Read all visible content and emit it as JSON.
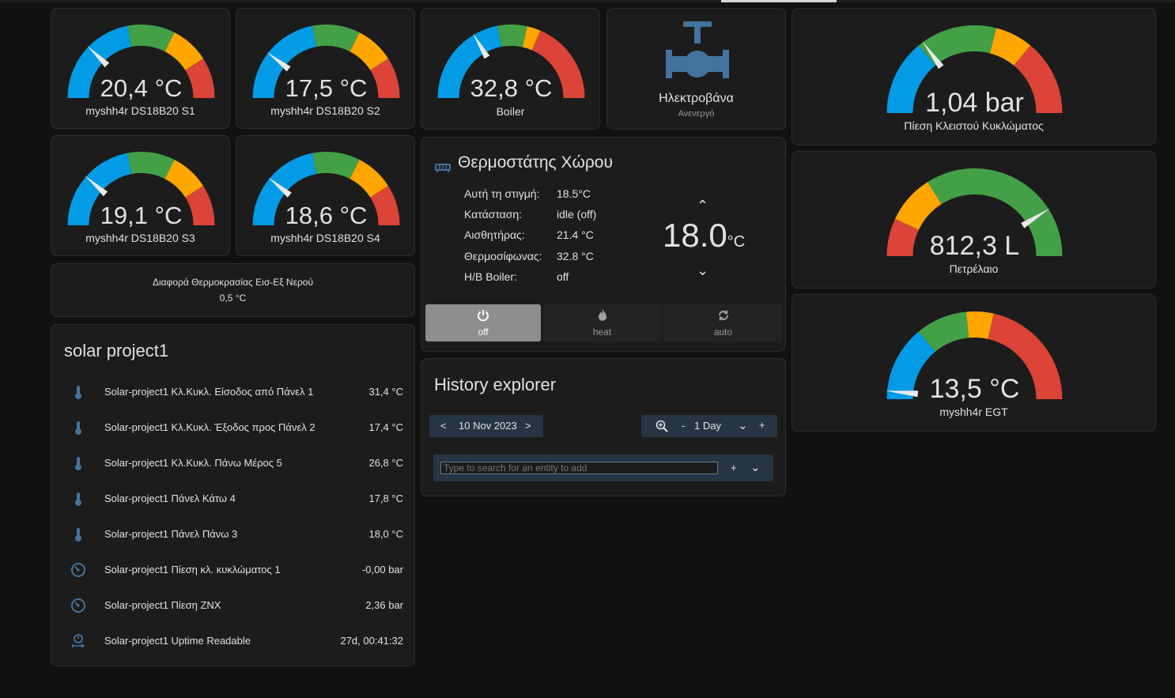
{
  "gauges": [
    {
      "id": "s1",
      "name": "myshh4r DS18B20 S1",
      "value": "20,4 °C",
      "needle": 0.245,
      "segments": [
        [
          "#039be5",
          0.44
        ],
        [
          "#43a047",
          0.65
        ],
        [
          "#ffa600",
          0.82
        ],
        [
          "#db4437",
          1
        ]
      ]
    },
    {
      "id": "s2",
      "name": "myshh4r DS18B20 S2",
      "value": "17,5 °C",
      "needle": 0.21,
      "segments": [
        [
          "#039be5",
          0.44
        ],
        [
          "#43a047",
          0.65
        ],
        [
          "#ffa600",
          0.82
        ],
        [
          "#db4437",
          1
        ]
      ]
    },
    {
      "id": "boiler",
      "name": "Boiler",
      "value": "32,8 °C",
      "needle": 0.33,
      "segments": [
        [
          "#039be5",
          0.44
        ],
        [
          "#43a047",
          0.57
        ],
        [
          "#ffa600",
          0.63
        ],
        [
          "#db4437",
          1
        ]
      ]
    },
    {
      "id": "s3",
      "name": "myshh4r DS18B20 S3",
      "value": "19,1 °C",
      "needle": 0.23,
      "segments": [
        [
          "#039be5",
          0.44
        ],
        [
          "#43a047",
          0.65
        ],
        [
          "#ffa600",
          0.82
        ],
        [
          "#db4437",
          1
        ]
      ]
    },
    {
      "id": "s4",
      "name": "myshh4r DS18B20 S4",
      "value": "18,6 °C",
      "needle": 0.22,
      "segments": [
        [
          "#039be5",
          0.44
        ],
        [
          "#43a047",
          0.65
        ],
        [
          "#ffa600",
          0.82
        ],
        [
          "#db4437",
          1
        ]
      ]
    },
    {
      "id": "pressure",
      "name": "Πίεση Κλειστού Κυκλώματος",
      "value": "1,04 bar",
      "needle": 0.3,
      "segments": [
        [
          "#039be5",
          0.28
        ],
        [
          "#43a047",
          0.58
        ],
        [
          "#ffa600",
          0.72
        ],
        [
          "#db4437",
          1
        ]
      ]
    },
    {
      "id": "oil",
      "name": "Πετρέλαιο",
      "value": "812,3 L",
      "needle": 0.82,
      "segments": [
        [
          "#db4437",
          0.14
        ],
        [
          "#ffa600",
          0.32
        ],
        [
          "#43a047",
          1
        ]
      ]
    },
    {
      "id": "egt",
      "name": "myshh4r EGT",
      "value": "13,5 °C",
      "needle": 0.03,
      "segments": [
        [
          "#039be5",
          0.28
        ],
        [
          "#43a047",
          0.47
        ],
        [
          "#ffa600",
          0.57
        ],
        [
          "#db4437",
          1
        ]
      ]
    }
  ],
  "valve": {
    "title": "Ηλεκτροβάνα",
    "state": "Ανενεργό",
    "icon": "pipe-valve-icon",
    "color": "#44739e"
  },
  "diff": {
    "label": "Διαφορά Θερμοκρασίας Εισ-Εξ Νερού",
    "value": "0,5 °C"
  },
  "solar": {
    "title": "solar project1",
    "rows": [
      {
        "icon": "thermometer-icon",
        "name": "Solar-project1 Κλ.Κυκλ. Είσοδος από Πάνελ 1",
        "value": "31,4 °C"
      },
      {
        "icon": "thermometer-icon",
        "name": "Solar-project1 Κλ.Κυκλ. Έξοδος προς Πάνελ 2",
        "value": "17,4 °C"
      },
      {
        "icon": "thermometer-icon",
        "name": "Solar-project1 Κλ.Κυκλ. Πάνω Μέρος 5",
        "value": "26,8 °C"
      },
      {
        "icon": "thermometer-icon",
        "name": "Solar-project1 Πάνελ Κάτω 4",
        "value": "17,8 °C"
      },
      {
        "icon": "thermometer-icon",
        "name": "Solar-project1 Πάνελ Πάνω 3",
        "value": "18,0 °C"
      },
      {
        "icon": "gauge-icon",
        "name": "Solar-project1 Πίεση κλ. κυκλώματος 1",
        "value": "-0,00 bar"
      },
      {
        "icon": "gauge-icon",
        "name": "Solar-project1 Πίεση ZNX",
        "value": "2,36 bar"
      },
      {
        "icon": "timer-icon",
        "name": "Solar-project1 Uptime Readable",
        "value": "27d, 00:41:32"
      }
    ]
  },
  "thermostat": {
    "title": "Θερμοστάτης Χώρου",
    "icon": "radiator-icon",
    "attributes": [
      {
        "label": "Αυτή τη στιγμή:",
        "value": "18.5°C"
      },
      {
        "label": "Κατάσταση:",
        "value": "idle (off)"
      },
      {
        "label": "Αισθητήρας:",
        "value": "21.4 °C"
      },
      {
        "label": "Θερμοσίφωνας:",
        "value": "32.8 °C"
      },
      {
        "label": "H/B Boiler:",
        "value": "off"
      }
    ],
    "target": "18.0",
    "unit": "°C",
    "up": "⌃",
    "down": "⌄",
    "modes": [
      {
        "label": "off",
        "icon": "power-icon",
        "active": true
      },
      {
        "label": "heat",
        "icon": "fire-icon",
        "active": false
      },
      {
        "label": "auto",
        "icon": "autorenew-icon",
        "active": false
      }
    ]
  },
  "history": {
    "title": "History explorer",
    "prev": "<",
    "date": "10 Nov 2023",
    "next": ">",
    "zoom_icon": "zoom-icon",
    "minus": "-",
    "range": "1 Day",
    "chevron": "⌄",
    "plus": "+",
    "search_placeholder": "Type to search for an entity to add",
    "add": "+",
    "expand": "⌄"
  },
  "colors": {
    "card": "#1c1c1c",
    "background": "#111111",
    "accent": "#44739e",
    "text": "#e1e1e1"
  }
}
